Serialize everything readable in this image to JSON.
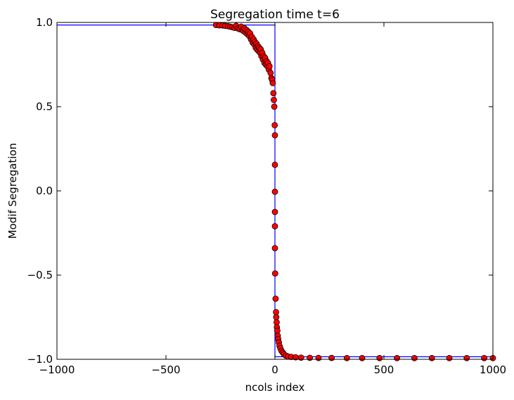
{
  "chart_data": {
    "type": "scatter",
    "title": "Segregation time t=6",
    "xlabel": "ncols index",
    "ylabel": "Modif Segregation",
    "xlim": [
      -1000,
      1000
    ],
    "ylim": [
      -1.0,
      1.0
    ],
    "xticks": [
      -1000,
      -500,
      0,
      500,
      1000
    ],
    "yticks": [
      -1.0,
      -0.5,
      0.0,
      0.5,
      1.0
    ],
    "xtick_labels": [
      "−1000",
      "−500",
      "0",
      "500",
      "1000"
    ],
    "ytick_labels": [
      "−1.0",
      "−0.5",
      "0.0",
      "0.5",
      "1.0"
    ],
    "grid": false,
    "colors": {
      "points_fill": "#ff0000",
      "points_edge": "#000000",
      "step_line": "#0000ff"
    },
    "step_line": {
      "x": [
        -1000,
        0,
        0,
        1000
      ],
      "y": [
        0.985,
        0.985,
        -0.985,
        -0.985
      ]
    },
    "series": [
      {
        "points": [
          [
            -270,
            0.985
          ],
          [
            -255,
            0.983
          ],
          [
            -240,
            0.982
          ],
          [
            -228,
            0.98
          ],
          [
            -215,
            0.978
          ],
          [
            -205,
            0.975
          ],
          [
            -195,
            0.972
          ],
          [
            -185,
            0.968
          ],
          [
            -178,
            0.98
          ],
          [
            -170,
            0.965
          ],
          [
            -162,
            0.96
          ],
          [
            -155,
            0.975
          ],
          [
            -150,
            0.955
          ],
          [
            -145,
            0.95
          ],
          [
            -140,
            0.965
          ],
          [
            -135,
            0.94
          ],
          [
            -130,
            0.955
          ],
          [
            -126,
            0.93
          ],
          [
            -122,
            0.945
          ],
          [
            -118,
            0.92
          ],
          [
            -114,
            0.935
          ],
          [
            -110,
            0.9
          ],
          [
            -106,
            0.915
          ],
          [
            -102,
            0.88
          ],
          [
            -98,
            0.9
          ],
          [
            -95,
            0.87
          ],
          [
            -92,
            0.885
          ],
          [
            -88,
            0.85
          ],
          [
            -85,
            0.875
          ],
          [
            -82,
            0.84
          ],
          [
            -78,
            0.86
          ],
          [
            -75,
            0.83
          ],
          [
            -72,
            0.85
          ],
          [
            -68,
            0.82
          ],
          [
            -65,
            0.84
          ],
          [
            -62,
            0.8
          ],
          [
            -58,
            0.82
          ],
          [
            -55,
            0.78
          ],
          [
            -52,
            0.8
          ],
          [
            -48,
            0.76
          ],
          [
            -45,
            0.79
          ],
          [
            -42,
            0.75
          ],
          [
            -38,
            0.77
          ],
          [
            -35,
            0.74
          ],
          [
            -32,
            0.76
          ],
          [
            -28,
            0.72
          ],
          [
            -25,
            0.74
          ],
          [
            -20,
            0.7
          ],
          [
            -16,
            0.67
          ],
          [
            -13,
            0.66
          ],
          [
            -10,
            0.64
          ],
          [
            -7,
            0.58
          ],
          [
            -5,
            0.54
          ],
          [
            -3,
            0.5
          ],
          [
            -1,
            0.39
          ],
          [
            0,
            0.33
          ],
          [
            0,
            0.155
          ],
          [
            0,
            -0.005
          ],
          [
            0,
            -0.125
          ],
          [
            0,
            -0.21
          ],
          [
            0,
            -0.34
          ],
          [
            1,
            -0.49
          ],
          [
            3,
            -0.64
          ],
          [
            5,
            -0.72
          ],
          [
            6,
            -0.75
          ],
          [
            8,
            -0.78
          ],
          [
            9,
            -0.81
          ],
          [
            11,
            -0.83
          ],
          [
            13,
            -0.86
          ],
          [
            15,
            -0.88
          ],
          [
            18,
            -0.9
          ],
          [
            21,
            -0.92
          ],
          [
            25,
            -0.935
          ],
          [
            30,
            -0.95
          ],
          [
            36,
            -0.96
          ],
          [
            42,
            -0.97
          ],
          [
            50,
            -0.978
          ],
          [
            60,
            -0.983
          ],
          [
            75,
            -0.986
          ],
          [
            95,
            -0.988
          ],
          [
            120,
            -0.99
          ],
          [
            160,
            -0.991
          ],
          [
            200,
            -0.992
          ],
          [
            260,
            -0.992
          ],
          [
            330,
            -0.993
          ],
          [
            400,
            -0.993
          ],
          [
            480,
            -0.993
          ],
          [
            560,
            -0.993
          ],
          [
            640,
            -0.993
          ],
          [
            720,
            -0.993
          ],
          [
            800,
            -0.993
          ],
          [
            880,
            -0.993
          ],
          [
            960,
            -0.993
          ],
          [
            1000,
            -0.993
          ]
        ]
      }
    ]
  }
}
